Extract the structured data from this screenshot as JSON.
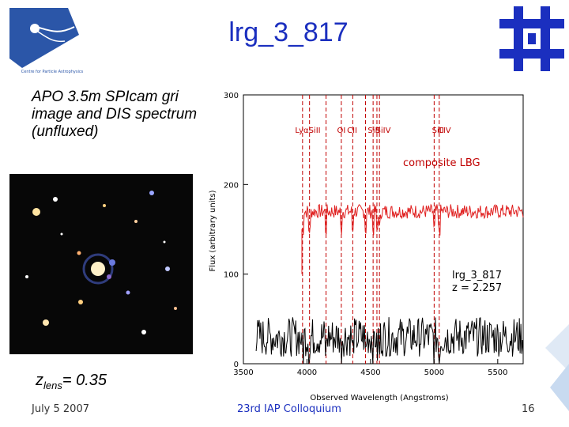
{
  "title": "lrg_3_817",
  "caption": "APO 3.5m SPIcam gri image and DIS spectrum (unfluxed)",
  "zlens": {
    "prefix": "z",
    "sub": "lens",
    "value": "= 0.35"
  },
  "footer": {
    "date": "July 5 2007",
    "event": "23rd IAP Colloquium",
    "page": "16"
  },
  "logos": {
    "left_text": "Centre for Particle Astrophysics",
    "left_icon": "comet-logo-icon",
    "right_icon": "fermilab-logo-icon"
  },
  "colors": {
    "title": "#1b2fbf",
    "composite": "#e02020",
    "observed": "#000000",
    "lines": "#c00000"
  },
  "chart_data": {
    "type": "line",
    "xlabel": "Observed Wavelength (Angstroms)",
    "ylabel": "Flux (arbitrary units)",
    "xlim": [
      3500,
      5700
    ],
    "ylim": [
      0,
      300
    ],
    "xticks": [
      3500,
      4000,
      4500,
      5000,
      5500
    ],
    "yticks": [
      0,
      100,
      200,
      300
    ],
    "line_labels": [
      {
        "text": "Lyα",
        "x": 3960
      },
      {
        "text": "SiII",
        "x": 4060
      },
      {
        "text": "OI",
        "x": 4270
      },
      {
        "text": "CII",
        "x": 4355
      },
      {
        "text": "SiII",
        "x": 4525
      },
      {
        "text": "SiIV",
        "x": 4600
      },
      {
        "text": "SiII",
        "x": 5030
      },
      {
        "text": "CIV",
        "x": 5080
      }
    ],
    "line_positions": [
      3965,
      4020,
      4150,
      4270,
      4360,
      4460,
      4520,
      4550,
      4570,
      5000,
      5040
    ],
    "series": [
      {
        "name": "composite LBG",
        "level": 170,
        "noise": 8
      },
      {
        "name": "lrg_3_817\nz = 2.257",
        "level": 30,
        "noise": 22
      }
    ],
    "series_labels": [
      {
        "text": "composite LBG",
        "color": "#c00000"
      },
      {
        "text": "lrg_3_817",
        "color": "#000000"
      },
      {
        "text": "z = 2.257",
        "color": "#000000"
      }
    ]
  }
}
